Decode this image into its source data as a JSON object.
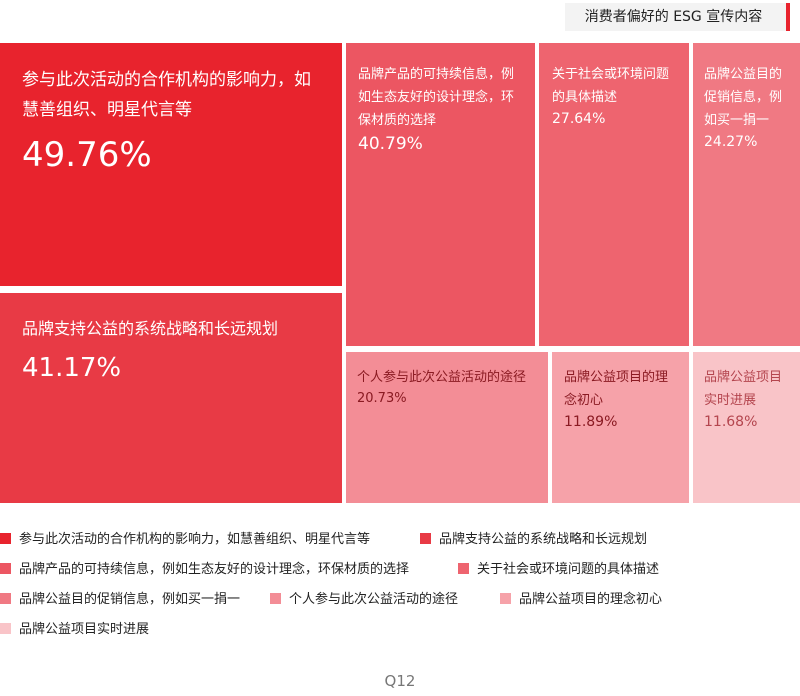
{
  "chart_data": {
    "type": "treemap",
    "title": "消费者偏好的 ESG 宣传内容",
    "categories": [
      "参与此次活动的合作机构的影响力，如慧善组织、明星代言等",
      "品牌支持公益的系统战略和长远规划",
      "品牌产品的可持续信息，例如生态友好的设计理念，环保材质的选择",
      "关于社会或环境问题的具体描述",
      "品牌公益目的促销信息，例如买一捐一",
      "个人参与此次公益活动的途径",
      "品牌公益项目的理念初心",
      "品牌公益项目实时进展"
    ],
    "tile_labels": [
      "参与此次活动的合作机构的影响力，如慧善组织、明星代言等",
      "品牌支持公益的系统战略和长远规划",
      "品牌产品的可持续信息，例如生态友好的设计理念，环保材质的选择",
      "关于社会或环境问题的具体描述",
      "品牌公益目的促销信息，例如买一捐一",
      "个人参与此次公益活动的途径",
      "品牌公益项目的理念初心",
      "品牌公益项目实时进展"
    ],
    "values": [
      49.76,
      41.17,
      40.79,
      27.64,
      24.27,
      20.73,
      11.89,
      11.68
    ],
    "value_labels": [
      "49.76%",
      "41.17%",
      "40.79%",
      "27.64%",
      "24.27%",
      "20.73%",
      "11.89%",
      "11.68%"
    ],
    "unit": "%",
    "colors": [
      "#e8232d",
      "#e83a45",
      "#ec5662",
      "#ee646f",
      "#f07983",
      "#f38d96",
      "#f6a2a9",
      "#f9c4c8"
    ],
    "legend_position": "bottom"
  },
  "footer": "Q12"
}
